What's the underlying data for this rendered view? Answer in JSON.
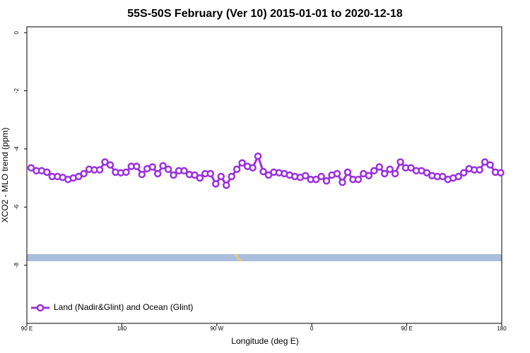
{
  "chart_data": {
    "type": "line",
    "title": "55S-50S February (Ver 10)   2015-01-01 to 2020-12-18",
    "x_label": "Longitude (deg E)",
    "y_label": "XCO2 - MLO trend (ppm)",
    "x": [
      94,
      99,
      104,
      109,
      114,
      119,
      124,
      129,
      134,
      139,
      144,
      149,
      154,
      159,
      164,
      169,
      174,
      179,
      184,
      189,
      194,
      199,
      204,
      209,
      214,
      219,
      224,
      229,
      234,
      239,
      244,
      249,
      254,
      259,
      264,
      269,
      274,
      279,
      284,
      289,
      294,
      299,
      304,
      309,
      314,
      319,
      324,
      329,
      334,
      339,
      344,
      349,
      354,
      359,
      364,
      369,
      374,
      379,
      384,
      389,
      394,
      399,
      404,
      409,
      414,
      419,
      424,
      429,
      434,
      439,
      444,
      449,
      454,
      459,
      464,
      469,
      474,
      479,
      484,
      489,
      494,
      499,
      504,
      509,
      514,
      519,
      524,
      529,
      534,
      539
    ],
    "series": [
      {
        "name": "Land (Nadir&Glint) and Ocean (Glint)",
        "color": "#9b30e0",
        "values": [
          -4.65,
          -4.75,
          -4.75,
          -4.8,
          -4.95,
          -4.95,
          -4.98,
          -5.05,
          -5.0,
          -4.95,
          -4.85,
          -4.7,
          -4.72,
          -4.72,
          -4.45,
          -4.55,
          -4.8,
          -4.82,
          -4.8,
          -4.6,
          -4.6,
          -4.88,
          -4.68,
          -4.62,
          -4.85,
          -4.58,
          -4.7,
          -4.9,
          -4.75,
          -4.75,
          -4.88,
          -4.9,
          -5.0,
          -4.85,
          -4.85,
          -5.2,
          -4.95,
          -5.25,
          -4.95,
          -4.7,
          -4.48,
          -4.6,
          -4.65,
          -4.25,
          -4.78,
          -4.9,
          -4.8,
          -4.82,
          -4.85,
          -4.9,
          -4.95,
          -4.98,
          -4.92,
          -5.05,
          -5.05,
          -4.95,
          -5.1,
          -4.9,
          -4.85,
          -5.15,
          -4.8,
          -5.05,
          -5.05,
          -4.85,
          -4.92,
          -4.75,
          -4.62,
          -4.85,
          -4.7,
          -4.85,
          -4.45,
          -4.65,
          -4.65,
          -4.75,
          -4.75,
          -4.82,
          -4.92,
          -4.95,
          -4.95,
          -5.05,
          -5.0,
          -4.95,
          -4.82,
          -4.68,
          -4.72,
          -4.72,
          -4.45,
          -4.55,
          -4.8,
          -4.82
        ]
      }
    ],
    "xlim": [
      90,
      540
    ],
    "xticks": [
      {
        "value": 90,
        "label": "90 E"
      },
      180,
      {
        "value": 270,
        "label": "90 W"
      },
      {
        "value": 360,
        "label": "0"
      },
      {
        "value": 450,
        "label": "90 E"
      },
      {
        "value": 540,
        "label": "180"
      }
    ],
    "ylim": [
      -10,
      0.2
    ],
    "yticks": [
      0,
      -2,
      -4,
      -6,
      -8
    ],
    "legend": "bottom-left"
  }
}
